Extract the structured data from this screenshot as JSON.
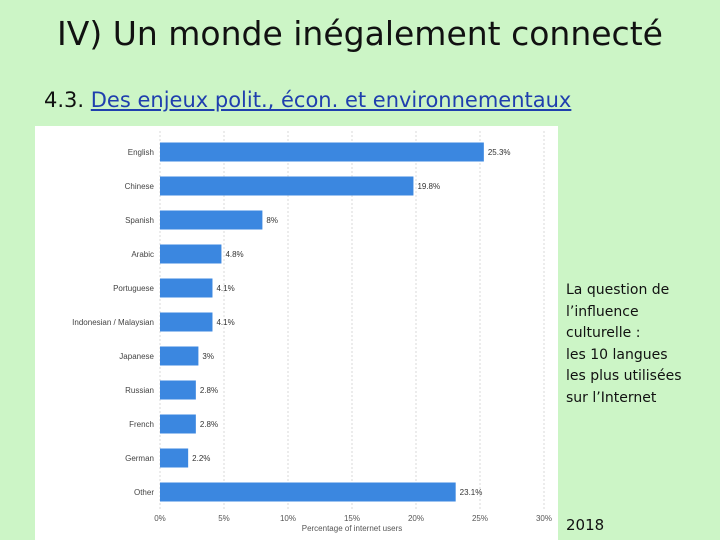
{
  "slide": {
    "title": "IV) Un monde inégalement connecté",
    "section_number": "4.3.",
    "section_link": "Des enjeux polit., écon. et environnementaux",
    "side_note": "La question de\nl’influence\nculturelle :\nles 10 langues\nles plus utilisées\nsur l’Internet",
    "year": "2018"
  },
  "chart_data": {
    "type": "bar",
    "orientation": "horizontal",
    "categories": [
      "English",
      "Chinese",
      "Spanish",
      "Arabic",
      "Portuguese",
      "Indonesian / Malaysian",
      "Japanese",
      "Russian",
      "French",
      "German",
      "Other"
    ],
    "values": [
      25.3,
      19.8,
      8,
      4.8,
      4.1,
      4.1,
      3,
      2.8,
      2.8,
      2.2,
      23.1
    ],
    "value_labels": [
      "25.3%",
      "19.8%",
      "8%",
      "4.8%",
      "4.1%",
      "4.1%",
      "3%",
      "2.8%",
      "2.8%",
      "2.2%",
      "23.1%"
    ],
    "xlim": [
      0,
      30
    ],
    "xticks": [
      "0%",
      "5%",
      "10%",
      "15%",
      "20%",
      "25%",
      "30%"
    ],
    "xlabel": "Percentage of internet users",
    "ylabel": "",
    "grid": "vertical",
    "bar_color": "#3b87e0"
  }
}
